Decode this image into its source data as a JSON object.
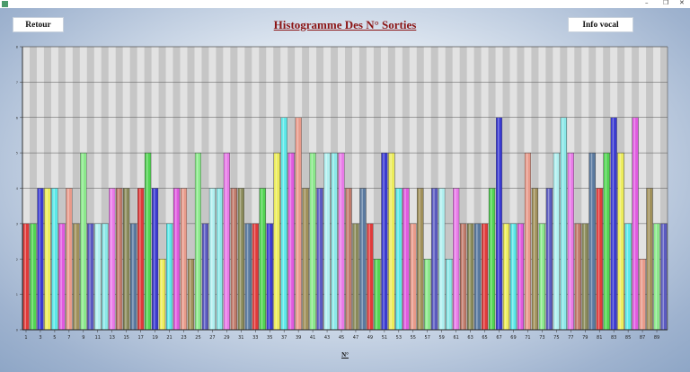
{
  "window": {
    "minimize": "–",
    "maximize": "❐",
    "close": "✕",
    "app_icon": "app-icon"
  },
  "buttons": {
    "back": "Retour",
    "voice": "Info vocal"
  },
  "chart_data": {
    "type": "bar",
    "title": "Histogramme Des N° Sorties",
    "xlabel": "N°",
    "ylabel": "",
    "ylim": [
      0,
      8
    ],
    "grid": true,
    "categories": [
      "1",
      "2",
      "3",
      "4",
      "5",
      "6",
      "7",
      "8",
      "9",
      "10",
      "11",
      "12",
      "13",
      "14",
      "15",
      "16",
      "17",
      "18",
      "19",
      "20",
      "21",
      "22",
      "23",
      "24",
      "25",
      "26",
      "27",
      "28",
      "29",
      "30",
      "31",
      "32",
      "33",
      "34",
      "35",
      "36",
      "37",
      "38",
      "39",
      "40",
      "41",
      "42",
      "43",
      "44",
      "45",
      "46",
      "47",
      "48",
      "49",
      "50",
      "51",
      "52",
      "53",
      "54",
      "55",
      "56",
      "57",
      "58",
      "59",
      "60",
      "61",
      "62",
      "63",
      "64",
      "65",
      "66",
      "67",
      "68",
      "69",
      "70",
      "71",
      "72",
      "73",
      "74",
      "75",
      "76",
      "77",
      "78",
      "79",
      "80",
      "81",
      "82",
      "83",
      "84",
      "85",
      "86",
      "87",
      "88",
      "89",
      "90"
    ],
    "values": [
      3,
      3,
      4,
      4,
      4,
      3,
      4,
      3,
      5,
      3,
      3,
      3,
      4,
      4,
      4,
      3,
      4,
      5,
      4,
      2,
      3,
      4,
      4,
      2,
      5,
      3,
      4,
      4,
      5,
      4,
      4,
      3,
      3,
      4,
      3,
      5,
      6,
      5,
      6,
      4,
      5,
      4,
      5,
      5,
      5,
      4,
      3,
      4,
      3,
      2,
      5,
      5,
      4,
      4,
      3,
      4,
      2,
      4,
      4,
      2,
      4,
      3,
      3,
      3,
      3,
      4,
      6,
      3,
      3,
      3,
      5,
      4,
      3,
      4,
      5,
      6,
      5,
      3,
      3,
      5,
      4,
      5,
      6,
      5,
      3,
      6,
      2,
      4,
      3,
      3
    ],
    "colors": [
      "#e03a3a",
      "#52d452",
      "#3a3ad0",
      "#ecec5a",
      "#5ae8e8",
      "#e05ae0",
      "#e89a8a",
      "#a0905a",
      "#8ae88a",
      "#5a5ac0",
      "#b0f0f0",
      "#8ae8e8",
      "#e87ae8",
      "#c07a6a",
      "#8a8a5a",
      "#5a7aa0"
    ],
    "ytick_values": [
      0,
      1,
      2,
      3,
      4,
      5,
      6,
      7,
      8
    ],
    "xtick_labels": [
      "1",
      "3",
      "5",
      "7",
      "9",
      "11",
      "13",
      "15",
      "17",
      "19",
      "21",
      "23",
      "25",
      "27",
      "29",
      "31",
      "33",
      "35",
      "37",
      "39",
      "41",
      "43",
      "45",
      "47",
      "49",
      "51",
      "53",
      "55",
      "57",
      "59",
      "61",
      "63",
      "65",
      "67",
      "69",
      "71",
      "73",
      "75",
      "77",
      "79",
      "81",
      "83",
      "85",
      "87",
      "89"
    ]
  }
}
